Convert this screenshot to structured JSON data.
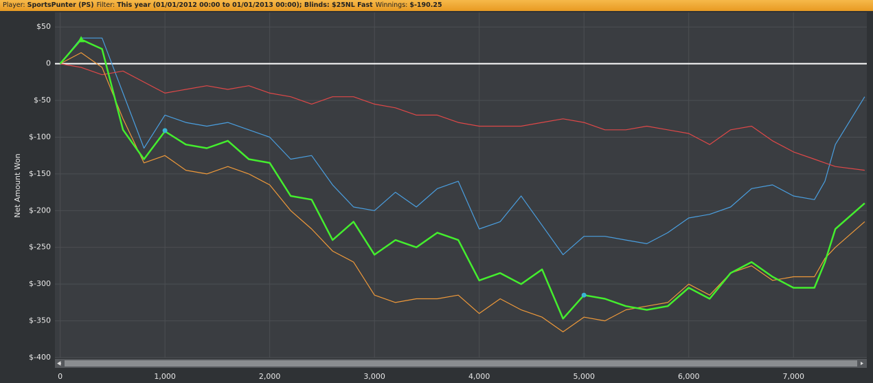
{
  "header": {
    "player_label": "Player:",
    "player": "SportsPunter (PS)",
    "filter_label": "Filter:",
    "filter": "This year (01/01/2012 00:00 to 01/01/2013 00:00); Blinds: $25NL Fast",
    "winnings_label": "Winnings:",
    "winnings": "$-190.25"
  },
  "chart_data": {
    "type": "line",
    "y_label": "Net Amount Won",
    "x": [
      0,
      200,
      400,
      600,
      800,
      1000,
      1200,
      1400,
      1600,
      1800,
      2000,
      2200,
      2400,
      2600,
      2800,
      3000,
      3200,
      3400,
      3600,
      3800,
      4000,
      4200,
      4400,
      4600,
      4800,
      5000,
      5200,
      5400,
      5600,
      5800,
      6000,
      6200,
      6400,
      6600,
      6800,
      7000,
      7200,
      7300,
      7400,
      7680
    ],
    "series": [
      {
        "color": "#4a9fe0",
        "width": 1.2,
        "values": [
          0,
          35,
          35,
          -40,
          -115,
          -70,
          -80,
          -85,
          -80,
          -90,
          -100,
          -130,
          -125,
          -165,
          -195,
          -200,
          -175,
          -195,
          -170,
          -160,
          -225,
          -215,
          -180,
          -220,
          -260,
          -235,
          -235,
          -240,
          -245,
          -230,
          -210,
          -205,
          -195,
          -170,
          -165,
          -180,
          -185,
          -160,
          -110,
          -45
        ]
      },
      {
        "color": "#e04848",
        "width": 1.2,
        "values": [
          0,
          -5,
          -15,
          -10,
          -25,
          -40,
          -35,
          -30,
          -35,
          -30,
          -40,
          -45,
          -55,
          -45,
          -45,
          -55,
          -60,
          -70,
          -70,
          -80,
          -85,
          -85,
          -85,
          -80,
          -75,
          -80,
          -90,
          -90,
          -85,
          -90,
          -95,
          -110,
          -90,
          -85,
          -105,
          -120,
          -130,
          -135,
          -140,
          -145
        ]
      },
      {
        "color": "#f09a3a",
        "width": 1.2,
        "values": [
          0,
          15,
          -5,
          -75,
          -135,
          -125,
          -145,
          -150,
          -140,
          -150,
          -165,
          -200,
          -225,
          -255,
          -270,
          -315,
          -325,
          -320,
          -320,
          -315,
          -340,
          -320,
          -335,
          -345,
          -365,
          -345,
          -350,
          -335,
          -330,
          -325,
          -300,
          -315,
          -285,
          -275,
          -295,
          -290,
          -290,
          -265,
          -250,
          -215
        ]
      },
      {
        "color": "#44ee2e",
        "width": 2.5,
        "values": [
          0,
          33,
          20,
          -90,
          -130,
          -92,
          -110,
          -115,
          -105,
          -130,
          -135,
          -180,
          -185,
          -240,
          -215,
          -260,
          -240,
          -250,
          -230,
          -240,
          -295,
          -285,
          -300,
          -280,
          -347,
          -315,
          -320,
          -330,
          -335,
          -330,
          -305,
          -320,
          -285,
          -270,
          -290,
          -305,
          -305,
          -270,
          -225,
          -190
        ]
      }
    ],
    "markers": [
      {
        "x": 200,
        "y": 33,
        "shape": "triangle",
        "color": "#44ee2e"
      },
      {
        "x": 1000,
        "y": -91,
        "shape": "circle",
        "color": "#3ab6d6"
      },
      {
        "x": 5000,
        "y": -315,
        "shape": "circle",
        "color": "#3ab6d6"
      }
    ],
    "xlim": [
      -50,
      7700
    ],
    "ylim": [
      -400,
      68
    ],
    "xticks": [
      0,
      {
        "value": 1000,
        "label": "1,000"
      },
      {
        "value": 2000,
        "label": "2,000"
      },
      {
        "value": 3000,
        "label": "3,000"
      },
      {
        "value": 4000,
        "label": "4,000"
      },
      {
        "value": 5000,
        "label": "5,000"
      },
      {
        "value": 6000,
        "label": "6,000"
      },
      {
        "value": 7000,
        "label": "7,000"
      }
    ],
    "yticks": [
      {
        "value": 50,
        "label": "$50"
      },
      0,
      {
        "value": -50,
        "label": "$-50"
      },
      {
        "value": -100,
        "label": "$-100"
      },
      {
        "value": -150,
        "label": "$-150"
      },
      {
        "value": -200,
        "label": "$-200"
      },
      {
        "value": -250,
        "label": "$-250"
      },
      {
        "value": -300,
        "label": "$-300"
      },
      {
        "value": -350,
        "label": "$-350"
      },
      {
        "value": -400,
        "label": "$-400"
      }
    ],
    "grid": true,
    "zero_line": true
  }
}
